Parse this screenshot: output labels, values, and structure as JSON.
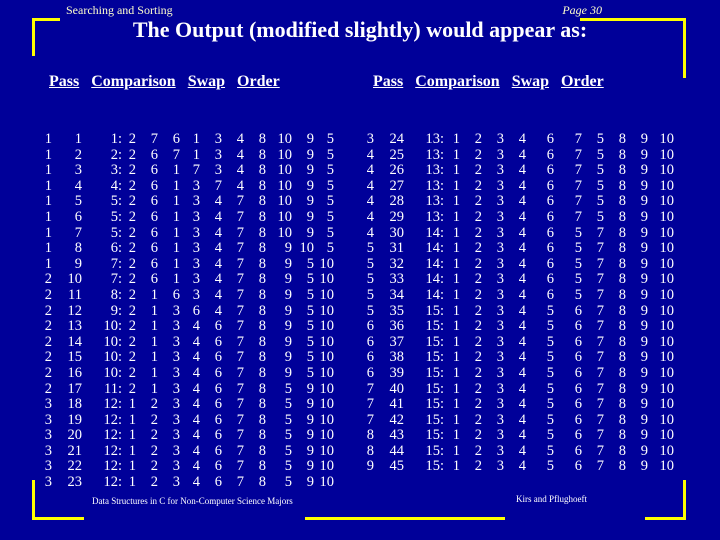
{
  "header": {
    "left": "Searching and Sorting",
    "right": "Page 30"
  },
  "title": "The Output (modified slightly) would appear as:",
  "columns": {
    "pass": "Pass",
    "comparison": "Comparison",
    "swap": "Swap",
    "order": "Order"
  },
  "left_rows": [
    [
      "1",
      "1",
      "1:",
      "2",
      "7",
      "6",
      "1",
      "3",
      "4",
      "8",
      "10",
      "9",
      "5"
    ],
    [
      "1",
      "2",
      "2:",
      "2",
      "6",
      "7",
      "1",
      "3",
      "4",
      "8",
      "10",
      "9",
      "5"
    ],
    [
      "1",
      "3",
      "3:",
      "2",
      "6",
      "1",
      "7",
      "3",
      "4",
      "8",
      "10",
      "9",
      "5"
    ],
    [
      "1",
      "4",
      "4:",
      "2",
      "6",
      "1",
      "3",
      "7",
      "4",
      "8",
      "10",
      "9",
      "5"
    ],
    [
      "1",
      "5",
      "5:",
      "2",
      "6",
      "1",
      "3",
      "4",
      "7",
      "8",
      "10",
      "9",
      "5"
    ],
    [
      "1",
      "6",
      "5:",
      "2",
      "6",
      "1",
      "3",
      "4",
      "7",
      "8",
      "10",
      "9",
      "5"
    ],
    [
      "1",
      "7",
      "5:",
      "2",
      "6",
      "1",
      "3",
      "4",
      "7",
      "8",
      "10",
      "9",
      "5"
    ],
    [
      "1",
      "8",
      "6:",
      "2",
      "6",
      "1",
      "3",
      "4",
      "7",
      "8",
      "9",
      "10",
      "5"
    ],
    [
      "1",
      "9",
      "7:",
      "2",
      "6",
      "1",
      "3",
      "4",
      "7",
      "8",
      "9",
      "5",
      "10"
    ],
    [
      "2",
      "10",
      "7:",
      "2",
      "6",
      "1",
      "3",
      "4",
      "7",
      "8",
      "9",
      "5",
      "10"
    ],
    [
      "2",
      "11",
      "8:",
      "2",
      "1",
      "6",
      "3",
      "4",
      "7",
      "8",
      "9",
      "5",
      "10"
    ],
    [
      "2",
      "12",
      "9:",
      "2",
      "1",
      "3",
      "6",
      "4",
      "7",
      "8",
      "9",
      "5",
      "10"
    ],
    [
      "2",
      "13",
      "10:",
      "2",
      "1",
      "3",
      "4",
      "6",
      "7",
      "8",
      "9",
      "5",
      "10"
    ],
    [
      "2",
      "14",
      "10:",
      "2",
      "1",
      "3",
      "4",
      "6",
      "7",
      "8",
      "9",
      "5",
      "10"
    ],
    [
      "2",
      "15",
      "10:",
      "2",
      "1",
      "3",
      "4",
      "6",
      "7",
      "8",
      "9",
      "5",
      "10"
    ],
    [
      "2",
      "16",
      "10:",
      "2",
      "1",
      "3",
      "4",
      "6",
      "7",
      "8",
      "9",
      "5",
      "10"
    ],
    [
      "2",
      "17",
      "11:",
      "2",
      "1",
      "3",
      "4",
      "6",
      "7",
      "8",
      "5",
      "9",
      "10"
    ],
    [
      "3",
      "18",
      "12:",
      "1",
      "2",
      "3",
      "4",
      "6",
      "7",
      "8",
      "5",
      "9",
      "10"
    ],
    [
      "3",
      "19",
      "12:",
      "1",
      "2",
      "3",
      "4",
      "6",
      "7",
      "8",
      "5",
      "9",
      "10"
    ],
    [
      "3",
      "20",
      "12:",
      "1",
      "2",
      "3",
      "4",
      "6",
      "7",
      "8",
      "5",
      "9",
      "10"
    ],
    [
      "3",
      "21",
      "12:",
      "1",
      "2",
      "3",
      "4",
      "6",
      "7",
      "8",
      "5",
      "9",
      "10"
    ],
    [
      "3",
      "22",
      "12:",
      "1",
      "2",
      "3",
      "4",
      "6",
      "7",
      "8",
      "5",
      "9",
      "10"
    ],
    [
      "3",
      "23",
      "12:",
      "1",
      "2",
      "3",
      "4",
      "6",
      "7",
      "8",
      "5",
      "9",
      "10"
    ]
  ],
  "right_rows": [
    [
      "3",
      "24",
      "13:",
      "1",
      "2",
      "3",
      "4",
      "6",
      "7",
      "5",
      "8",
      "9",
      "10"
    ],
    [
      "4",
      "25",
      "13:",
      "1",
      "2",
      "3",
      "4",
      "6",
      "7",
      "5",
      "8",
      "9",
      "10"
    ],
    [
      "4",
      "26",
      "13:",
      "1",
      "2",
      "3",
      "4",
      "6",
      "7",
      "5",
      "8",
      "9",
      "10"
    ],
    [
      "4",
      "27",
      "13:",
      "1",
      "2",
      "3",
      "4",
      "6",
      "7",
      "5",
      "8",
      "9",
      "10"
    ],
    [
      "4",
      "28",
      "13:",
      "1",
      "2",
      "3",
      "4",
      "6",
      "7",
      "5",
      "8",
      "9",
      "10"
    ],
    [
      "4",
      "29",
      "13:",
      "1",
      "2",
      "3",
      "4",
      "6",
      "7",
      "5",
      "8",
      "9",
      "10"
    ],
    [
      "4",
      "30",
      "14:",
      "1",
      "2",
      "3",
      "4",
      "6",
      "5",
      "7",
      "8",
      "9",
      "10"
    ],
    [
      "5",
      "31",
      "14:",
      "1",
      "2",
      "3",
      "4",
      "6",
      "5",
      "7",
      "8",
      "9",
      "10"
    ],
    [
      "5",
      "32",
      "14:",
      "1",
      "2",
      "3",
      "4",
      "6",
      "5",
      "7",
      "8",
      "9",
      "10"
    ],
    [
      "5",
      "33",
      "14:",
      "1",
      "2",
      "3",
      "4",
      "6",
      "5",
      "7",
      "8",
      "9",
      "10"
    ],
    [
      "5",
      "34",
      "14:",
      "1",
      "2",
      "3",
      "4",
      "6",
      "5",
      "7",
      "8",
      "9",
      "10"
    ],
    [
      "5",
      "35",
      "15:",
      "1",
      "2",
      "3",
      "4",
      "5",
      "6",
      "7",
      "8",
      "9",
      "10"
    ],
    [
      "6",
      "36",
      "15:",
      "1",
      "2",
      "3",
      "4",
      "5",
      "6",
      "7",
      "8",
      "9",
      "10"
    ],
    [
      "6",
      "37",
      "15:",
      "1",
      "2",
      "3",
      "4",
      "5",
      "6",
      "7",
      "8",
      "9",
      "10"
    ],
    [
      "6",
      "38",
      "15:",
      "1",
      "2",
      "3",
      "4",
      "5",
      "6",
      "7",
      "8",
      "9",
      "10"
    ],
    [
      "6",
      "39",
      "15:",
      "1",
      "2",
      "3",
      "4",
      "5",
      "6",
      "7",
      "8",
      "9",
      "10"
    ],
    [
      "7",
      "40",
      "15:",
      "1",
      "2",
      "3",
      "4",
      "5",
      "6",
      "7",
      "8",
      "9",
      "10"
    ],
    [
      "7",
      "41",
      "15:",
      "1",
      "2",
      "3",
      "4",
      "5",
      "6",
      "7",
      "8",
      "9",
      "10"
    ],
    [
      "7",
      "42",
      "15:",
      "1",
      "2",
      "3",
      "4",
      "5",
      "6",
      "7",
      "8",
      "9",
      "10"
    ],
    [
      "8",
      "43",
      "15:",
      "1",
      "2",
      "3",
      "4",
      "5",
      "6",
      "7",
      "8",
      "9",
      "10"
    ],
    [
      "8",
      "44",
      "15:",
      "1",
      "2",
      "3",
      "4",
      "5",
      "6",
      "7",
      "8",
      "9",
      "10"
    ],
    [
      "9",
      "45",
      "15:",
      "1",
      "2",
      "3",
      "4",
      "5",
      "6",
      "7",
      "8",
      "9",
      "10"
    ]
  ],
  "footer": {
    "left": "Data Structures in C for Non-Computer Science Majors",
    "right": "Kirs and Pflughoeft"
  },
  "colors": {
    "background": "#000099",
    "frame": "#ffff00",
    "text": "#ffffff"
  }
}
